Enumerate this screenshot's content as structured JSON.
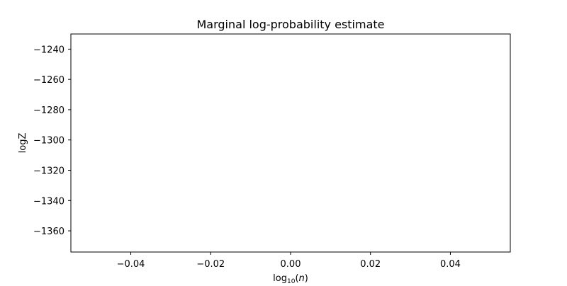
{
  "chart_data": {
    "type": "line",
    "title": "Marginal log-probability estimate",
    "xlabel_base": "log",
    "xlabel_sub": "10",
    "xlabel_open": "(",
    "xlabel_var": "n",
    "xlabel_close": ")",
    "ylabel": "logZ",
    "xlim": [
      -0.055,
      0.055
    ],
    "ylim": [
      -1374.0,
      -1230.0
    ],
    "xticks": [
      -0.04,
      -0.02,
      0.0,
      0.02,
      0.04
    ],
    "xtick_labels": [
      "−0.04",
      "−0.02",
      "0.00",
      "0.02",
      "0.04"
    ],
    "yticks": [
      -1240,
      -1260,
      -1280,
      -1300,
      -1320,
      -1340,
      -1360
    ],
    "ytick_labels": [
      "−1240",
      "−1260",
      "−1280",
      "−1300",
      "−1320",
      "−1340",
      "−1360"
    ],
    "grid": false,
    "series": []
  }
}
